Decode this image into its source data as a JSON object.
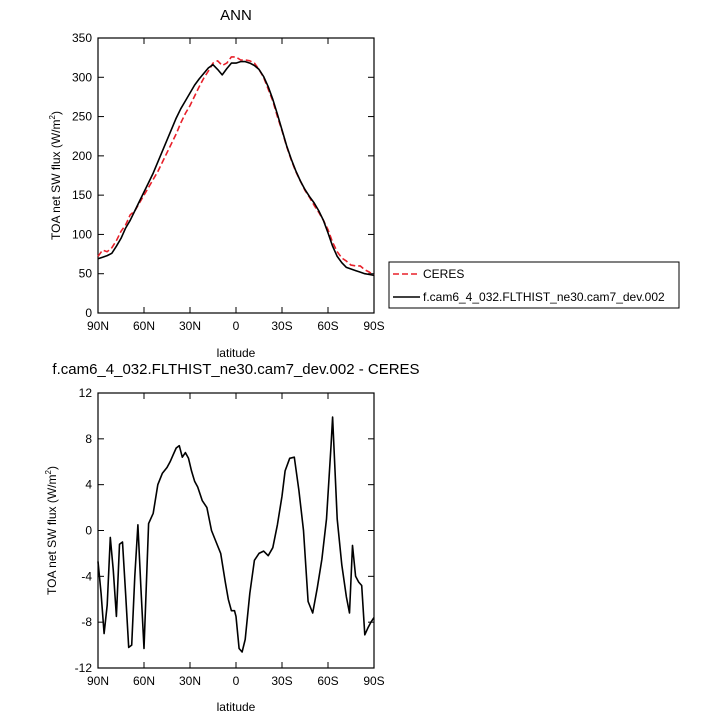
{
  "chart_data": [
    {
      "type": "line",
      "title": "ANN",
      "xlabel": "latitude",
      "ylabel": "TOA net SW flux (W/m",
      "ylabel_sup": "2",
      "ylabel_close": ")",
      "xlim": [
        90,
        -90
      ],
      "ylim": [
        0,
        350
      ],
      "xticks": [
        90,
        60,
        30,
        0,
        -30,
        -60,
        -90
      ],
      "xtick_labels": [
        "90N",
        "60N",
        "30N",
        "0",
        "30S",
        "60S",
        "90S"
      ],
      "yticks": [
        0,
        50,
        100,
        150,
        200,
        250,
        300,
        350
      ],
      "ytick_labels": [
        "0",
        "50",
        "100",
        "150",
        "200",
        "250",
        "300",
        "350"
      ],
      "legend": {
        "placement": "right",
        "entries": [
          "CERES",
          "f.cam6_4_032.FLTHIST_ne30.cam7_dev.002"
        ]
      },
      "series": [
        {
          "name": "CERES",
          "color": "#e8202a",
          "dash": "dashed",
          "x": [
            90,
            87,
            84,
            81,
            78,
            75,
            72,
            69,
            66,
            63,
            60,
            57,
            54,
            51,
            48,
            45,
            42,
            39,
            36,
            33,
            30,
            27,
            24,
            21,
            18,
            15,
            12,
            9,
            6,
            3,
            0,
            -3,
            -6,
            -9,
            -12,
            -15,
            -18,
            -21,
            -24,
            -27,
            -30,
            -33,
            -36,
            -39,
            -42,
            -45,
            -48,
            -51,
            -54,
            -57,
            -60,
            -63,
            -66,
            -69,
            -72,
            -75,
            -78,
            -81,
            -84,
            -87,
            -90
          ],
          "y": [
            72,
            80,
            78,
            83,
            92,
            104,
            112,
            125,
            130,
            140,
            150,
            160,
            170,
            180,
            192,
            204,
            216,
            228,
            242,
            254,
            264,
            276,
            288,
            299,
            308,
            318,
            321,
            315,
            318,
            326,
            326,
            322,
            322,
            321,
            318,
            310,
            300,
            285,
            270,
            250,
            232,
            212,
            195,
            180,
            168,
            156,
            147,
            137,
            128,
            118,
            106,
            90,
            78,
            70,
            66,
            61,
            60,
            60,
            55,
            52,
            48
          ]
        },
        {
          "name": "f.cam6_4_032.FLTHIST_ne30.cam7_dev.002",
          "color": "#000000",
          "dash": "solid",
          "x": [
            90,
            87,
            84,
            81,
            78,
            75,
            72,
            69,
            66,
            63,
            60,
            57,
            54,
            51,
            48,
            45,
            42,
            39,
            36,
            33,
            30,
            27,
            24,
            21,
            18,
            15,
            12,
            9,
            6,
            3,
            0,
            -3,
            -6,
            -9,
            -12,
            -15,
            -18,
            -21,
            -24,
            -27,
            -30,
            -33,
            -36,
            -39,
            -42,
            -45,
            -48,
            -51,
            -54,
            -57,
            -60,
            -63,
            -66,
            -69,
            -72,
            -75,
            -78,
            -81,
            -84,
            -87,
            -90
          ],
          "y": [
            69,
            71,
            73,
            76,
            85,
            95,
            108,
            118,
            130,
            142,
            154,
            166,
            178,
            192,
            206,
            220,
            234,
            248,
            260,
            270,
            280,
            290,
            298,
            305,
            312,
            316,
            310,
            303,
            311,
            318,
            318,
            320,
            320,
            318,
            315,
            310,
            301,
            288,
            272,
            253,
            233,
            213,
            196,
            181,
            168,
            157,
            148,
            140,
            130,
            118,
            102,
            85,
            72,
            64,
            58,
            56,
            54,
            52,
            50,
            49,
            48
          ]
        }
      ]
    },
    {
      "type": "line",
      "title": "f.cam6_4_032.FLTHIST_ne30.cam7_dev.002 - CERES",
      "xlabel": "latitude",
      "ylabel": "TOA net SW flux (W/m",
      "ylabel_sup": "2",
      "ylabel_close": ")",
      "xlim": [
        90,
        -90
      ],
      "ylim": [
        -12,
        12
      ],
      "xticks": [
        90,
        60,
        30,
        0,
        -30,
        -60,
        -90
      ],
      "xtick_labels": [
        "90N",
        "60N",
        "30N",
        "0",
        "30S",
        "60S",
        "90S"
      ],
      "yticks": [
        -12,
        -8,
        -4,
        0,
        4,
        8,
        12
      ],
      "ytick_labels": [
        "-12",
        "-8",
        "-4",
        "0",
        "4",
        "8",
        "12"
      ],
      "series": [
        {
          "name": "",
          "color": "#000000",
          "dash": "solid",
          "x": [
            90,
            88,
            86,
            84,
            82,
            80,
            78,
            76,
            74,
            72,
            70,
            68,
            66,
            64,
            62,
            60,
            57,
            54,
            51,
            48,
            45,
            43,
            41,
            39,
            37,
            35,
            33,
            31,
            29,
            27,
            25,
            22,
            19,
            16,
            13,
            10,
            7,
            5,
            3,
            1,
            0,
            -2,
            -4,
            -6,
            -9,
            -12,
            -15,
            -18,
            -21,
            -24,
            -27,
            -30,
            -32,
            -35,
            -38,
            -41,
            -44,
            -47,
            -50,
            -53,
            -56,
            -59,
            -62,
            -63,
            -66,
            -69,
            -72,
            -74,
            -76,
            -78,
            -80,
            -82,
            -84,
            -86,
            -88,
            -90
          ],
          "y": [
            -2.7,
            -5.5,
            -9.0,
            -6.5,
            -0.6,
            -3.5,
            -7.5,
            -1.2,
            -1.0,
            -5.5,
            -10.2,
            -10.0,
            -4.0,
            0.5,
            -5.0,
            -10.3,
            0.6,
            1.5,
            4.0,
            5.0,
            5.5,
            6.0,
            6.6,
            7.2,
            7.4,
            6.4,
            6.8,
            6.3,
            5.2,
            4.3,
            3.8,
            2.6,
            2.0,
            0.0,
            -1.0,
            -2.0,
            -4.5,
            -6.0,
            -7.0,
            -7.0,
            -7.5,
            -10.3,
            -10.6,
            -9.5,
            -5.5,
            -2.6,
            -2.0,
            -1.8,
            -2.2,
            -1.5,
            0.5,
            3.0,
            5.2,
            6.3,
            6.4,
            3.5,
            0.0,
            -6.2,
            -7.2,
            -5.0,
            -2.5,
            1.0,
            7.5,
            9.9,
            1.0,
            -3.0,
            -5.8,
            -7.2,
            -1.3,
            -4.0,
            -4.5,
            -4.8,
            -9.1,
            -8.5,
            -8.0,
            -7.6
          ]
        }
      ]
    }
  ]
}
